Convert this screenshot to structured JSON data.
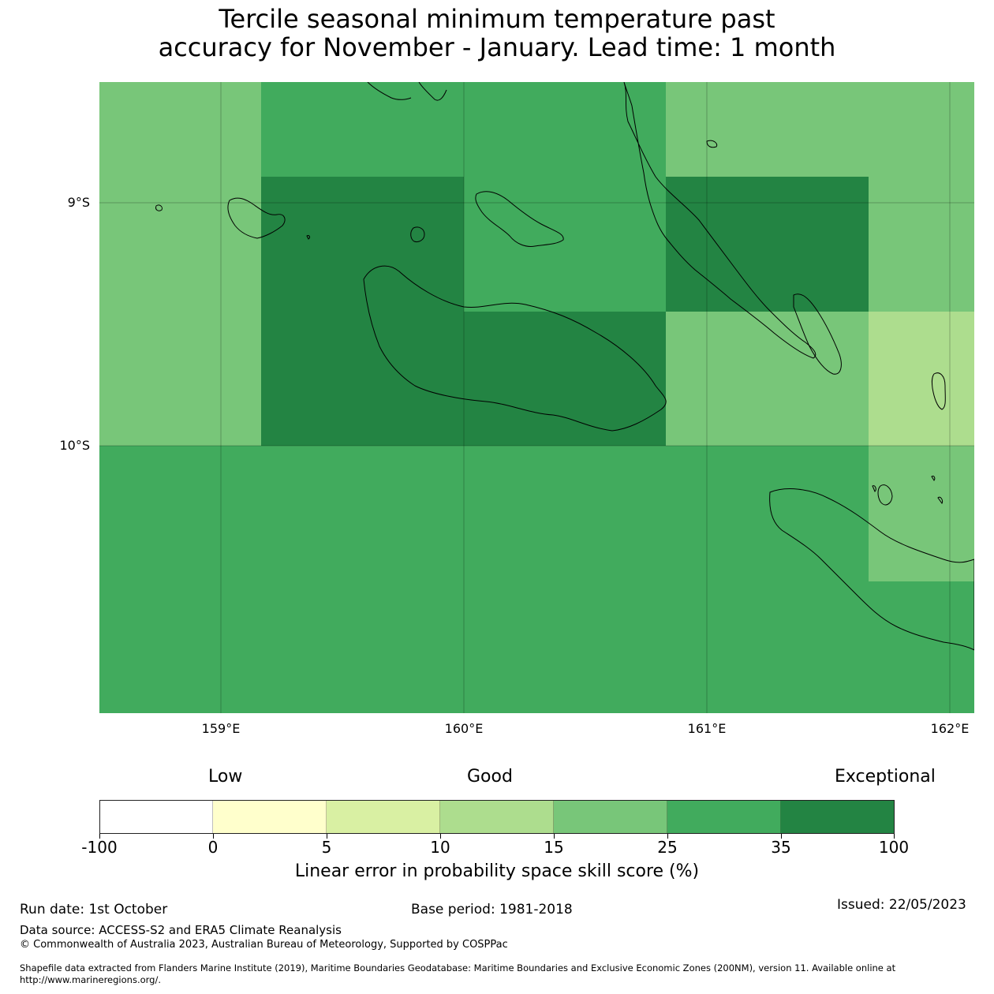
{
  "title_line1": "Tercile seasonal minimum temperature past",
  "title_line2": "accuracy for November - January. Lead time: 1 month",
  "map": {
    "lat_labels": [
      "9°S",
      "10°S"
    ],
    "lon_labels": [
      "159°E",
      "160°E",
      "161°E",
      "162°E"
    ],
    "cell_colors": {
      "c15_25": "#78c679",
      "c25_35": "#41ab5d",
      "c35_100": "#238443",
      "c10_15": "#addd8e"
    }
  },
  "legend": {
    "categories": [
      "Low",
      "Good",
      "Exceptional"
    ],
    "colors": [
      "#ffffff",
      "#ffffcc",
      "#d9f0a3",
      "#addd8e",
      "#78c679",
      "#41ab5d",
      "#238443"
    ],
    "ticks": [
      "-100",
      "0",
      "5",
      "10",
      "15",
      "25",
      "35",
      "100"
    ],
    "label": "Linear error in probability space skill score (%)"
  },
  "footer": {
    "run_date": "Run date: 1st October",
    "base_period": "Base period: 1981-2018",
    "issued": "Issued: 22/05/2023",
    "data_source": "Data source: ACCESS-S2 and ERA5 Climate Reanalysis",
    "copyright": "© Commonwealth of Australia 2023, Australian Bureau of Meteorology, Supported by COSPPac",
    "shapefile_line1": "Shapefile data extracted from Flanders Marine Institute (2019), Maritime Boundaries Geodatabase: Maritime Boundaries and Exclusive Economic Zones (200NM), version 11. Available online at",
    "shapefile_line2": "http://www.marineregions.org/."
  }
}
